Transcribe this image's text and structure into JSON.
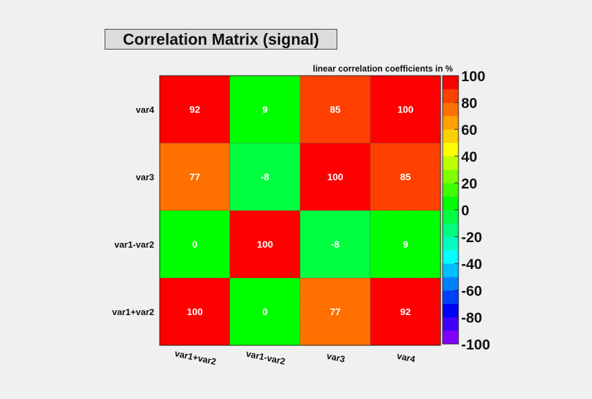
{
  "chart_data": {
    "type": "heatmap",
    "title": "Correlation Matrix (signal)",
    "colorbar_label": "linear correlation coefficients in %",
    "x_labels": [
      "var1+var2",
      "var1-var2",
      "var3",
      "var4"
    ],
    "y_labels": [
      "var1+var2",
      "var1-var2",
      "var3",
      "var4"
    ],
    "matrix": [
      [
        100,
        0,
        77,
        92
      ],
      [
        0,
        100,
        -8,
        9
      ],
      [
        77,
        -8,
        100,
        85
      ],
      [
        92,
        9,
        85,
        100
      ]
    ],
    "colorbar_range": [
      -100,
      100
    ],
    "colorbar_ticks": [
      "100",
      "80",
      "60",
      "40",
      "20",
      "0",
      "-20",
      "-40",
      "-60",
      "-80",
      "-100"
    ],
    "colorbar_steps": [
      "#8000ff",
      "#4000ff",
      "#0000ff",
      "#0040ff",
      "#0080ff",
      "#00bfff",
      "#00ffff",
      "#00ffbf",
      "#00ff80",
      "#00ff40",
      "#00ff00",
      "#40ff00",
      "#80ff00",
      "#bfff00",
      "#ffff00",
      "#ffd000",
      "#ffa000",
      "#ff7000",
      "#ff4000",
      "#ff0000"
    ]
  }
}
